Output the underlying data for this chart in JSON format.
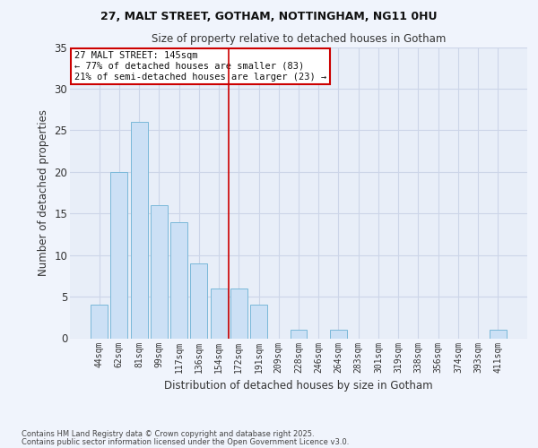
{
  "title1": "27, MALT STREET, GOTHAM, NOTTINGHAM, NG11 0HU",
  "title2": "Size of property relative to detached houses in Gotham",
  "xlabel": "Distribution of detached houses by size in Gotham",
  "ylabel": "Number of detached properties",
  "categories": [
    "44sqm",
    "62sqm",
    "81sqm",
    "99sqm",
    "117sqm",
    "136sqm",
    "154sqm",
    "172sqm",
    "191sqm",
    "209sqm",
    "228sqm",
    "246sqm",
    "264sqm",
    "283sqm",
    "301sqm",
    "319sqm",
    "338sqm",
    "356sqm",
    "374sqm",
    "393sqm",
    "411sqm"
  ],
  "values": [
    4,
    20,
    26,
    16,
    14,
    9,
    6,
    6,
    4,
    0,
    1,
    0,
    1,
    0,
    0,
    0,
    0,
    0,
    0,
    0,
    1
  ],
  "bar_color": "#cce0f5",
  "bar_edge_color": "#7ab8d9",
  "vline_x": 6.5,
  "vline_color": "#cc0000",
  "annotation_text": "27 MALT STREET: 145sqm\n← 77% of detached houses are smaller (83)\n21% of semi-detached houses are larger (23) →",
  "annotation_box_color": "#ffffff",
  "annotation_box_edge": "#cc0000",
  "ylim": [
    0,
    35
  ],
  "yticks": [
    0,
    5,
    10,
    15,
    20,
    25,
    30,
    35
  ],
  "grid_color": "#ccd5e8",
  "bg_color": "#e8eef8",
  "fig_bg_color": "#f0f4fc",
  "footer1": "Contains HM Land Registry data © Crown copyright and database right 2025.",
  "footer2": "Contains public sector information licensed under the Open Government Licence v3.0."
}
